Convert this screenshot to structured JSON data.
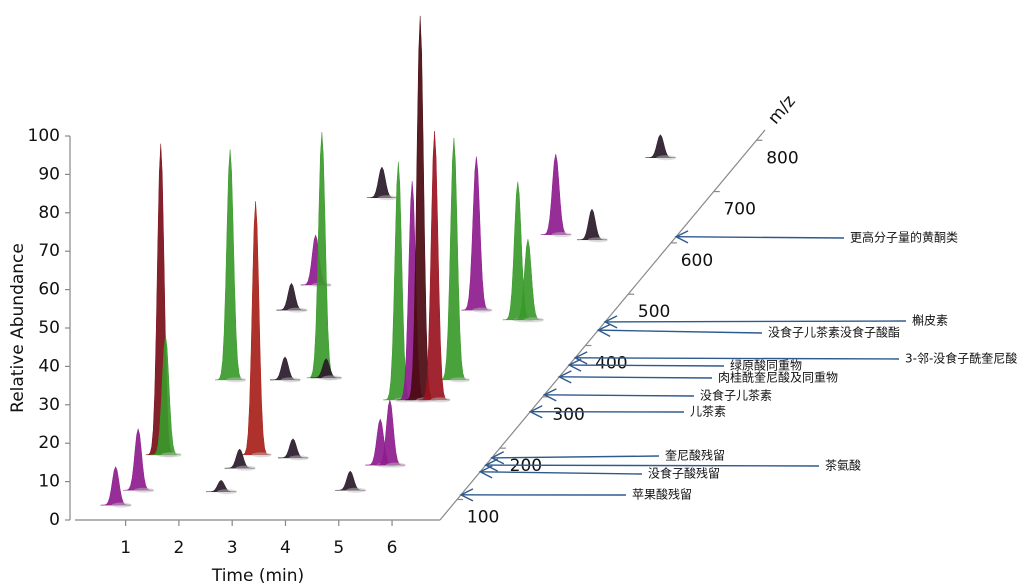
{
  "chart_data": {
    "type": "waterfall3d",
    "xlabel": "Time (min)",
    "ylabel": "Relative Abundance",
    "zlabel": "m/z",
    "xlim": [
      0.05,
      6.9
    ],
    "xticks": [
      1,
      2,
      3,
      4,
      5,
      6
    ],
    "ylim": [
      0,
      100
    ],
    "yticks": [
      0,
      10,
      20,
      30,
      40,
      50,
      60,
      70,
      80,
      90,
      100
    ],
    "zlim": [
      60,
      820
    ],
    "zticks": [
      100,
      200,
      300,
      400,
      500,
      600,
      700,
      800
    ],
    "peaks": [
      {
        "time": 0.89,
        "mz": 518,
        "abundance": 13,
        "color": "#8e1c8e"
      },
      {
        "time": 0.83,
        "mz": 469,
        "abundance": 7,
        "color": "#2a1a2a"
      },
      {
        "time": 0.77,
        "mz": 688,
        "abundance": 8,
        "color": "#2a1a2a"
      },
      {
        "time": 5.37,
        "mz": 766,
        "abundance": 6,
        "color": "#2a1a2a"
      },
      {
        "time": 5.37,
        "mz": 606,
        "abundance": 8,
        "color": "#2a1a2a"
      },
      {
        "time": 4.61,
        "mz": 616,
        "abundance": 21,
        "color": "#8e1c8e"
      },
      {
        "time": 4.3,
        "mz": 469,
        "abundance": 40,
        "color": "#8e1c8e"
      },
      {
        "time": 5.23,
        "mz": 450,
        "abundance": 36,
        "color": "#3a9a2a"
      },
      {
        "time": 5.42,
        "mz": 450,
        "abundance": 21,
        "color": "#3a9a2a"
      },
      {
        "time": 0.77,
        "mz": 333,
        "abundance": 60,
        "color": "#3a9a2a"
      },
      {
        "time": 1.8,
        "mz": 333,
        "abundance": 6,
        "color": "#2a1a2a"
      },
      {
        "time": 2.46,
        "mz": 337,
        "abundance": 64,
        "color": "#3a9a2a"
      },
      {
        "time": 2.54,
        "mz": 337,
        "abundance": 5,
        "color": "#2a1a2a"
      },
      {
        "time": 4.97,
        "mz": 333,
        "abundance": 63,
        "color": "#3a9a2a"
      },
      {
        "time": 4.24,
        "mz": 294,
        "abundance": 62,
        "color": "#3a9a2a"
      },
      {
        "time": 4.5,
        "mz": 294,
        "abundance": 57,
        "color": "#8e1c8e"
      },
      {
        "time": 4.65,
        "mz": 294,
        "abundance": 100,
        "color": "#4a0a10"
      },
      {
        "time": 4.92,
        "mz": 294,
        "abundance": 70,
        "color": "#9a1420"
      },
      {
        "time": 0.64,
        "mz": 187,
        "abundance": 81,
        "color": "#7a0f1a"
      },
      {
        "time": 0.73,
        "mz": 187,
        "abundance": 31,
        "color": "#3a9a2a"
      },
      {
        "time": 2.42,
        "mz": 187,
        "abundance": 66,
        "color": "#a8201a"
      },
      {
        "time": 3.17,
        "mz": 181,
        "abundance": 5,
        "color": "#2a1a2a"
      },
      {
        "time": 4.92,
        "mz": 167,
        "abundance": 12,
        "color": "#8e1c8e"
      },
      {
        "time": 5.1,
        "mz": 167,
        "abundance": 17,
        "color": "#8e1c8e"
      },
      {
        "time": 2.33,
        "mz": 161,
        "abundance": 5,
        "color": "#2a1a2a"
      },
      {
        "time": 0.77,
        "mz": 118,
        "abundance": 16,
        "color": "#8e1c8e"
      },
      {
        "time": 4.75,
        "mz": 118,
        "abundance": 5,
        "color": "#2a1a2a"
      },
      {
        "time": 2.35,
        "mz": 115,
        "abundance": 3,
        "color": "#2a1a2a"
      },
      {
        "time": 0.58,
        "mz": 89,
        "abundance": 10,
        "color": "#8e1c8e"
      }
    ],
    "annotations": [
      {
        "text": "更高分子量的黄酮类",
        "mz": 612
      },
      {
        "text": "槲皮素",
        "mz": 446
      },
      {
        "text": "没食子儿茶素没食子酸酯",
        "mz": 430
      },
      {
        "text": "3-邻-没食子酰奎尼酸",
        "mz": 376
      },
      {
        "text": "绿原酸同重物",
        "mz": 362
      },
      {
        "text": "肉桂酰奎尼酸及同重物",
        "mz": 339
      },
      {
        "text": "没食子儿茶素",
        "mz": 304
      },
      {
        "text": "儿茶素",
        "mz": 271
      },
      {
        "text": "奎尼酸残留",
        "mz": 181
      },
      {
        "text": "茶氨酸",
        "mz": 167
      },
      {
        "text": "没食子酸残留",
        "mz": 154
      },
      {
        "text": "苹果酸残留",
        "mz": 109
      }
    ],
    "arrow_color": "#2e5a8e"
  }
}
